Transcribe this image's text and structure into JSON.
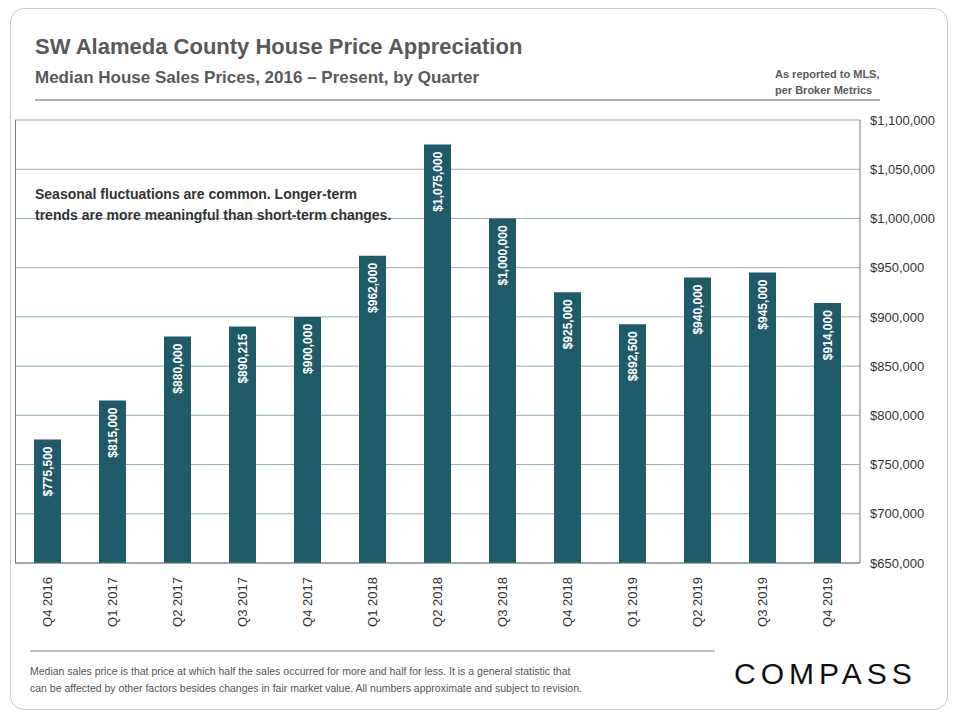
{
  "chart_data": {
    "type": "bar",
    "title": "SW Alameda County House Price Appreciation",
    "subtitle": "Median House Sales Prices, 2016 – Present, by Quarter",
    "source_note": [
      "As reported to MLS,",
      "per Broker Metrics"
    ],
    "annotation": [
      "Seasonal fluctuations are common. Longer-term",
      "trends are more meaningful than short-term changes."
    ],
    "footnote": [
      "Median sales price is that price at which half the sales occurred for more and half for less. It is a general statistic that",
      "can be affected by other factors besides changes in fair market value. All numbers approximate and subject to revision."
    ],
    "logo": "COMPASS",
    "categories": [
      "Q4 2016",
      "Q1 2017",
      "Q2 2017",
      "Q3 2017",
      "Q4 2017",
      "Q1 2018",
      "Q2 2018",
      "Q3 2018",
      "Q4 2018",
      "Q1 2019",
      "Q2 2019",
      "Q3 2019",
      "Q4 2019"
    ],
    "values": [
      775500,
      815000,
      880000,
      890215,
      900000,
      962000,
      1075000,
      1000000,
      925000,
      892500,
      940000,
      945000,
      914000
    ],
    "value_labels": [
      "$775,500",
      "$815,000",
      "$880,000",
      "$890,215",
      "$900,000",
      "$962,000",
      "$1,075,000",
      "$1,000,000",
      "$925,000",
      "$892,500",
      "$940,000",
      "$945,000",
      "$914,000"
    ],
    "color": "#1f5a68",
    "ylim": [
      650000,
      1100000
    ],
    "yticks": [
      {
        "value": 650000,
        "label": "$650,000"
      },
      {
        "value": 700000,
        "label": "$700,000"
      },
      {
        "value": 750000,
        "label": "$750,000"
      },
      {
        "value": 800000,
        "label": "$800,000"
      },
      {
        "value": 850000,
        "label": "$850,000"
      },
      {
        "value": 900000,
        "label": "$900,000"
      },
      {
        "value": 950000,
        "label": "$950,000"
      },
      {
        "value": 1000000,
        "label": "$1,000,000"
      },
      {
        "value": 1050000,
        "label": "$1,050,000"
      },
      {
        "value": 1100000,
        "label": "$1,100,000"
      }
    ],
    "grid": true,
    "data_labels": true
  }
}
